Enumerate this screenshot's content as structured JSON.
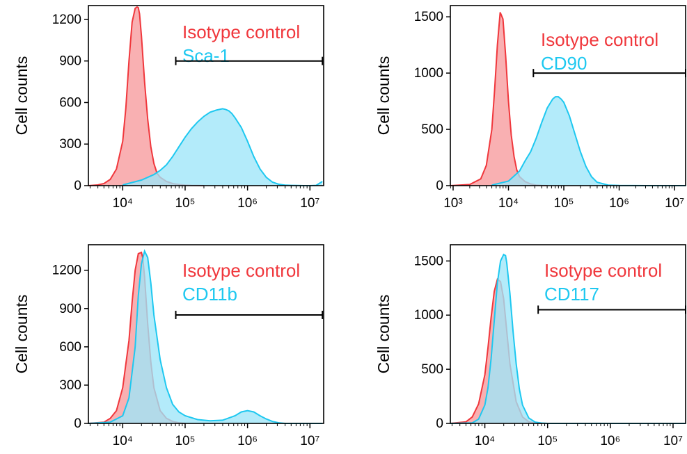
{
  "chart_data": [
    {
      "type": "area",
      "ylabel": "Cell counts",
      "xscale": "log",
      "xlim_log10": [
        3.45,
        7.22
      ],
      "ylim": [
        0,
        1300
      ],
      "yticks": [
        0,
        300,
        600,
        900,
        1200
      ],
      "xtick_exponents": [
        4,
        5,
        6,
        7
      ],
      "gate": [
        4.85,
        7.2
      ],
      "gate_y": 900,
      "series": [
        {
          "name": "Isotype control",
          "color": "#f0373c",
          "fill": "#f8a2a4",
          "x_log10": [
            3.45,
            3.6,
            3.7,
            3.8,
            3.9,
            4.0,
            4.05,
            4.1,
            4.15,
            4.2,
            4.23,
            4.25,
            4.27,
            4.3,
            4.35,
            4.4,
            4.45,
            4.5,
            4.55,
            4.6,
            4.7,
            4.8,
            4.9,
            5.0,
            5.1,
            5.2,
            5.3
          ],
          "y": [
            0,
            5,
            15,
            45,
            120,
            320,
            560,
            900,
            1180,
            1280,
            1290,
            1285,
            1240,
            1080,
            750,
            480,
            280,
            160,
            90,
            60,
            30,
            15,
            8,
            4,
            2,
            1,
            0
          ]
        },
        {
          "name": "Sca-1",
          "color": "#1ec8f0",
          "fill": "#9ee6f8",
          "x_log10": [
            4.0,
            4.3,
            4.5,
            4.6,
            4.7,
            4.8,
            4.9,
            5.0,
            5.1,
            5.2,
            5.3,
            5.4,
            5.5,
            5.6,
            5.65,
            5.7,
            5.75,
            5.8,
            5.9,
            6.0,
            6.1,
            6.2,
            6.3,
            6.4,
            6.5,
            6.6,
            6.7,
            6.8,
            6.9,
            7.0,
            7.1,
            7.2
          ],
          "y": [
            5,
            40,
            80,
            110,
            150,
            210,
            280,
            350,
            410,
            460,
            500,
            530,
            545,
            555,
            550,
            540,
            520,
            490,
            420,
            320,
            210,
            120,
            60,
            25,
            10,
            4,
            2,
            1,
            0,
            0,
            2,
            30
          ]
        }
      ],
      "legend": {
        "text_lines": [
          "Isotype control",
          "Sca-1"
        ],
        "colors": [
          "#f0373c",
          "#1ec8f0"
        ]
      }
    },
    {
      "type": "area",
      "ylabel": "Cell counts",
      "xscale": "log",
      "xlim_log10": [
        2.95,
        7.2
      ],
      "ylim": [
        0,
        1600
      ],
      "yticks": [
        0,
        500,
        1000,
        1500
      ],
      "xtick_exponents": [
        3,
        4,
        5,
        6,
        7
      ],
      "gate": [
        4.45,
        7.2
      ],
      "gate_y": 1000,
      "series": [
        {
          "name": "Isotype control",
          "color": "#f0373c",
          "fill": "#f8a2a4",
          "x_log10": [
            2.95,
            3.3,
            3.5,
            3.6,
            3.7,
            3.75,
            3.8,
            3.85,
            3.9,
            3.95,
            4.0,
            4.05,
            4.1,
            4.15,
            4.2,
            4.3,
            4.4,
            4.5,
            4.6,
            4.7
          ],
          "y": [
            0,
            10,
            60,
            180,
            500,
            850,
            1250,
            1540,
            1480,
            1150,
            750,
            450,
            260,
            140,
            80,
            35,
            15,
            5,
            2,
            0
          ]
        },
        {
          "name": "CD90",
          "color": "#1ec8f0",
          "fill": "#9ee6f8",
          "x_log10": [
            3.7,
            4.0,
            4.2,
            4.3,
            4.4,
            4.5,
            4.6,
            4.7,
            4.8,
            4.85,
            4.9,
            4.95,
            5.0,
            5.1,
            5.2,
            5.3,
            5.4,
            5.5,
            5.6,
            5.8,
            6.0,
            6.5,
            7.0,
            7.2
          ],
          "y": [
            5,
            40,
            130,
            220,
            300,
            420,
            560,
            690,
            770,
            790,
            790,
            770,
            740,
            620,
            460,
            300,
            170,
            80,
            30,
            5,
            1,
            0,
            0,
            0
          ]
        }
      ],
      "legend": {
        "text_lines": [
          "Isotype control",
          "CD90"
        ],
        "colors": [
          "#f0373c",
          "#1ec8f0"
        ]
      }
    },
    {
      "type": "area",
      "ylabel": "Cell counts",
      "xscale": "log",
      "xlim_log10": [
        3.45,
        7.22
      ],
      "ylim": [
        0,
        1400
      ],
      "yticks": [
        0,
        300,
        600,
        900,
        1200
      ],
      "xtick_exponents": [
        4,
        5,
        6,
        7
      ],
      "gate": [
        4.85,
        7.2
      ],
      "gate_y": 850,
      "series": [
        {
          "name": "Isotype control",
          "color": "#f0373c",
          "fill": "#f8a2a4",
          "x_log10": [
            3.45,
            3.7,
            3.8,
            3.9,
            4.0,
            4.1,
            4.15,
            4.2,
            4.25,
            4.3,
            4.32,
            4.35,
            4.4,
            4.45,
            4.5,
            4.6,
            4.7,
            4.8,
            4.9,
            5.0
          ],
          "y": [
            0,
            10,
            40,
            100,
            280,
            650,
            950,
            1200,
            1330,
            1340,
            1300,
            1150,
            780,
            480,
            280,
            100,
            40,
            15,
            5,
            0
          ]
        },
        {
          "name": "CD11b",
          "color": "#1ec8f0",
          "fill": "#9ee6f8",
          "x_log10": [
            3.45,
            3.8,
            4.0,
            4.1,
            4.2,
            4.25,
            4.3,
            4.35,
            4.4,
            4.45,
            4.5,
            4.6,
            4.7,
            4.8,
            4.9,
            5.0,
            5.2,
            5.4,
            5.6,
            5.8,
            5.9,
            6.0,
            6.1,
            6.2,
            6.3,
            6.4,
            6.5,
            6.6,
            7.0,
            7.2
          ],
          "y": [
            0,
            10,
            60,
            200,
            600,
            1000,
            1250,
            1350,
            1300,
            1100,
            850,
            500,
            280,
            150,
            90,
            60,
            30,
            20,
            25,
            60,
            90,
            100,
            90,
            60,
            35,
            15,
            5,
            0,
            0,
            0
          ]
        }
      ],
      "legend": {
        "text_lines": [
          "Isotype control",
          "CD11b"
        ],
        "colors": [
          "#f0373c",
          "#1ec8f0"
        ]
      }
    },
    {
      "type": "area",
      "ylabel": "Cell counts",
      "xscale": "log",
      "xlim_log10": [
        3.45,
        7.2
      ],
      "ylim": [
        0,
        1650
      ],
      "yticks": [
        0,
        500,
        1000,
        1500
      ],
      "xtick_exponents": [
        4,
        5,
        6,
        7
      ],
      "gate": [
        4.85,
        7.2
      ],
      "gate_y": 1050,
      "series": [
        {
          "name": "Isotype control",
          "color": "#f0373c",
          "fill": "#f8a2a4",
          "x_log10": [
            3.45,
            3.7,
            3.8,
            3.9,
            4.0,
            4.05,
            4.1,
            4.15,
            4.2,
            4.25,
            4.3,
            4.35,
            4.4,
            4.5,
            4.6,
            4.7,
            4.8,
            4.9
          ],
          "y": [
            0,
            15,
            60,
            180,
            450,
            700,
            980,
            1220,
            1330,
            1310,
            1150,
            850,
            550,
            200,
            60,
            15,
            3,
            0
          ]
        },
        {
          "name": "CD117",
          "color": "#1ec8f0",
          "fill": "#9ee6f8",
          "x_log10": [
            3.45,
            3.8,
            3.9,
            4.0,
            4.05,
            4.1,
            4.15,
            4.2,
            4.25,
            4.3,
            4.33,
            4.35,
            4.4,
            4.45,
            4.5,
            4.55,
            4.6,
            4.7,
            4.8,
            4.9,
            5.0,
            6.0,
            7.0,
            7.2
          ],
          "y": [
            0,
            5,
            40,
            170,
            330,
            600,
            950,
            1300,
            1500,
            1560,
            1550,
            1480,
            1200,
            850,
            550,
            320,
            170,
            50,
            12,
            3,
            0,
            0,
            0,
            0
          ]
        }
      ],
      "legend": {
        "text_lines": [
          "Isotype control",
          "CD117"
        ],
        "colors": [
          "#f0373c",
          "#1ec8f0"
        ]
      }
    }
  ]
}
